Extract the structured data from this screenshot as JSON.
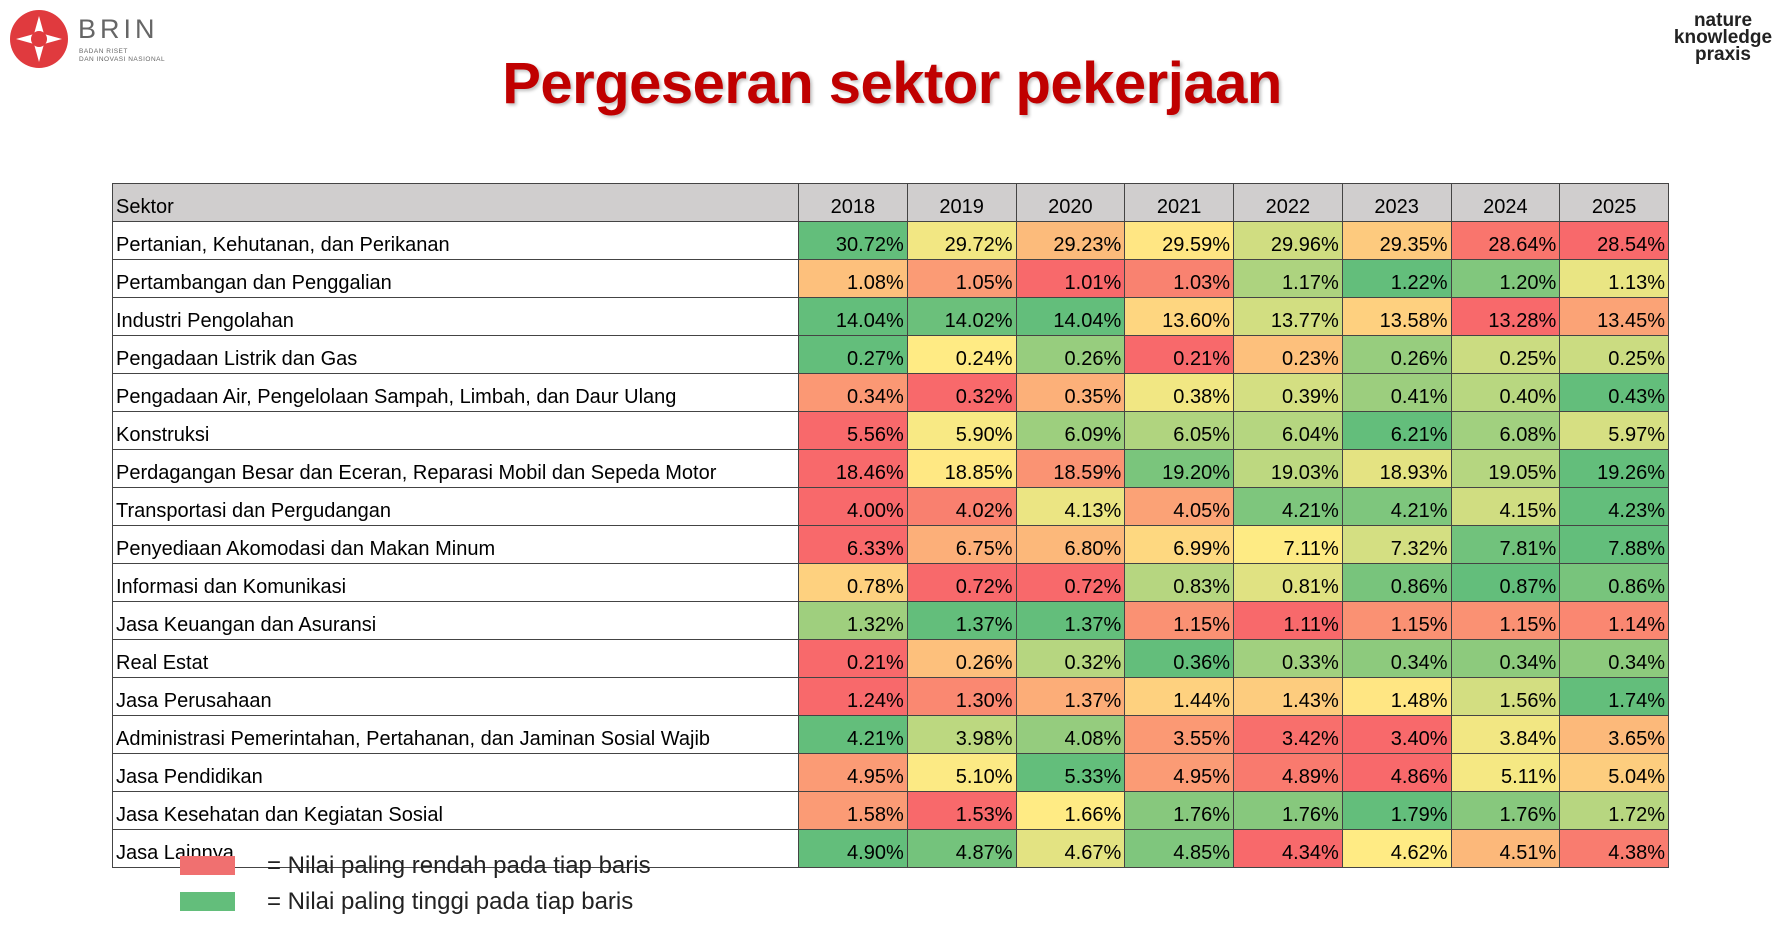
{
  "logos": {
    "left": {
      "name": "BRIN",
      "lines": [
        "BADAN RISET",
        "DAN INOVASI NASIONAL"
      ]
    },
    "right": {
      "lines": [
        "nature",
        "knowledge",
        "praxis"
      ]
    }
  },
  "title": "Pergeseran sektor pekerjaan",
  "color_scale": {
    "low": "#F8696B",
    "mid": "#FFEB84",
    "high": "#63BE7B"
  },
  "table": {
    "header": [
      "Sektor",
      "2018",
      "2019",
      "2020",
      "2021",
      "2022",
      "2023",
      "2024",
      "2025"
    ],
    "rows": [
      [
        "Pertanian, Kehutanan, dan Perikanan",
        "30.72%",
        "29.72%",
        "29.23%",
        "29.59%",
        "29.96%",
        "29.35%",
        "28.64%",
        "28.54%"
      ],
      [
        "Pertambangan dan Penggalian",
        "1.08%",
        "1.05%",
        "1.01%",
        "1.03%",
        "1.17%",
        "1.22%",
        "1.20%",
        "1.13%"
      ],
      [
        "Industri Pengolahan",
        "14.04%",
        "14.02%",
        "14.04%",
        "13.60%",
        "13.77%",
        "13.58%",
        "13.28%",
        "13.45%"
      ],
      [
        "Pengadaan Listrik dan Gas",
        "0.27%",
        "0.24%",
        "0.26%",
        "0.21%",
        "0.23%",
        "0.26%",
        "0.25%",
        "0.25%"
      ],
      [
        "Pengadaan Air, Pengelolaan Sampah, Limbah, dan Daur Ulang",
        "0.34%",
        "0.32%",
        "0.35%",
        "0.38%",
        "0.39%",
        "0.41%",
        "0.40%",
        "0.43%"
      ],
      [
        "Konstruksi",
        "5.56%",
        "5.90%",
        "6.09%",
        "6.05%",
        "6.04%",
        "6.21%",
        "6.08%",
        "5.97%"
      ],
      [
        "Perdagangan Besar dan Eceran, Reparasi Mobil dan Sepeda Motor",
        "18.46%",
        "18.85%",
        "18.59%",
        "19.20%",
        "19.03%",
        "18.93%",
        "19.05%",
        "19.26%"
      ],
      [
        "Transportasi dan Pergudangan",
        "4.00%",
        "4.02%",
        "4.13%",
        "4.05%",
        "4.21%",
        "4.21%",
        "4.15%",
        "4.23%"
      ],
      [
        "Penyediaan Akomodasi dan Makan Minum",
        "6.33%",
        "6.75%",
        "6.80%",
        "6.99%",
        "7.11%",
        "7.32%",
        "7.81%",
        "7.88%"
      ],
      [
        "Informasi dan Komunikasi",
        "0.78%",
        "0.72%",
        "0.72%",
        "0.83%",
        "0.81%",
        "0.86%",
        "0.87%",
        "0.86%"
      ],
      [
        "Jasa Keuangan dan Asuransi",
        "1.32%",
        "1.37%",
        "1.37%",
        "1.15%",
        "1.11%",
        "1.15%",
        "1.15%",
        "1.14%"
      ],
      [
        "Real Estat",
        "0.21%",
        "0.26%",
        "0.32%",
        "0.36%",
        "0.33%",
        "0.34%",
        "0.34%",
        "0.34%"
      ],
      [
        "Jasa Perusahaan",
        "1.24%",
        "1.30%",
        "1.37%",
        "1.44%",
        "1.43%",
        "1.48%",
        "1.56%",
        "1.74%"
      ],
      [
        "Administrasi Pemerintahan, Pertahanan, dan Jaminan Sosial Wajib",
        "4.21%",
        "3.98%",
        "4.08%",
        "3.55%",
        "3.42%",
        "3.40%",
        "3.84%",
        "3.65%"
      ],
      [
        "Jasa Pendidikan",
        "4.95%",
        "5.10%",
        "5.33%",
        "4.95%",
        "4.89%",
        "4.86%",
        "5.11%",
        "5.04%"
      ],
      [
        "Jasa Kesehatan dan Kegiatan Sosial",
        "1.58%",
        "1.53%",
        "1.66%",
        "1.76%",
        "1.76%",
        "1.79%",
        "1.76%",
        "1.72%"
      ],
      [
        "Jasa Lainnya",
        "4.90%",
        "4.87%",
        "4.67%",
        "4.85%",
        "4.34%",
        "4.62%",
        "4.51%",
        "4.38%"
      ]
    ]
  },
  "legend": {
    "items": [
      {
        "color": "#F07070",
        "label": "= Nilai paling rendah pada tiap baris"
      },
      {
        "color": "#63BE7B",
        "label": "= Nilai paling tinggi pada tiap baris"
      }
    ]
  }
}
